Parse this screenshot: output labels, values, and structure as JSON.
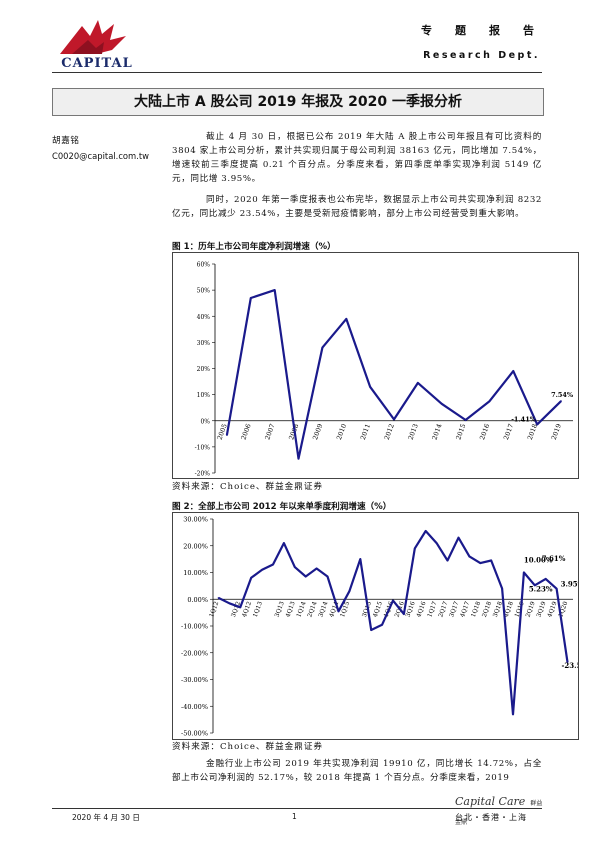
{
  "header": {
    "logo_text": "CAPITAL",
    "dept_cn": "专　题　报　告",
    "dept_en": "Research Dept."
  },
  "title": "大陆上市 A 股公司 2019 年报及 2020 一季报分析",
  "author": {
    "name": "胡嘉铭",
    "email": "C0020@capital.com.tw"
  },
  "paragraphs": [
    "截止 4 月 30 日，根据已公布 2019 年大陆 A 股上市公司年报且有可比资料的 3804 家上市公司分析，累计共实现归属于母公司利润 38163 亿元，同比增加 7.54%，增速较前三季度提高 0.21 个百分点。分季度来看，第四季度单季实现净利润 5149 亿元，同比增 3.95%。",
    "同时，2020 年第一季度报表也公布完毕，数据显示上市公司共实现净利润 8232 亿元，同比减少 23.54%，主要是受新冠疫情影响，部分上市公司经营受到重大影响。"
  ],
  "figure1": {
    "title": "图 1：历年上市公司年度净利润增速（%）",
    "source": "资料来源：Choice、群益金鼎证券"
  },
  "figure2": {
    "title": "图 2：全部上市公司 2012 年以来单季度利润增速（%）",
    "source": "资料来源：Choice、群益金鼎证券"
  },
  "paragraph3": "金融行业上市公司 2019 年共实现净利润 19910 亿，同比增长 14.72%，占全部上市公司净利润的 52.17%，较 2018 年提高 1 个百分点。分季度来看，2019",
  "footer": {
    "date": "2020 年 4 月 30 日",
    "page": "1",
    "brand": "Capital Care",
    "brand_sub": "群益金鼎",
    "cities": "台北・香港・上海"
  },
  "colors": {
    "line": "#1a1a8c",
    "title_bg": "#efefef",
    "logo_red": "#c0182a"
  },
  "chart_data": [
    {
      "type": "line",
      "categories": [
        "2005",
        "2006",
        "2007",
        "2008",
        "2009",
        "2010",
        "2011",
        "2012",
        "2013",
        "2014",
        "2015",
        "2016",
        "2017",
        "2018",
        "2019"
      ],
      "series": [
        {
          "values": [
            -5.5,
            47,
            50,
            -14.5,
            28,
            39,
            13,
            0.5,
            14.5,
            6.5,
            0.3,
            7.5,
            19,
            -1.41,
            7.54
          ]
        }
      ],
      "y_ticks": [
        "60%",
        "50%",
        "40%",
        "30%",
        "20%",
        "10%",
        "0%",
        "-10%",
        "-20%"
      ],
      "ylim": [
        -20,
        60
      ],
      "annotations": [
        {
          "index": 13,
          "text": "-1.41%"
        },
        {
          "index": 14,
          "text": "7.54%"
        }
      ],
      "grid": false
    },
    {
      "type": "line",
      "categories": [
        "1Q12",
        "2Q12",
        "3Q12",
        "4Q12",
        "1Q13",
        "2Q13",
        "3Q13",
        "4Q13",
        "1Q14",
        "2Q14",
        "3Q14",
        "4Q14",
        "1Q15",
        "2Q15",
        "3Q15",
        "4Q15",
        "1Q16",
        "2Q16",
        "3Q16",
        "4Q16",
        "1Q17",
        "2Q17",
        "3Q17",
        "4Q17",
        "1Q18",
        "2Q18",
        "3Q18",
        "4Q18",
        "1Q19",
        "2Q19",
        "3Q19",
        "4Q19",
        "1Q20"
      ],
      "tick_labels_shown": [
        "1Q12",
        "3Q12",
        "4Q12",
        "1Q13",
        "3Q13",
        "4Q13",
        "1Q14",
        "2Q14",
        "3Q14",
        "4Q14",
        "1Q15",
        "3Q15",
        "4Q15",
        "1Q16",
        "2Q16",
        "3Q16",
        "4Q16",
        "1Q17",
        "2Q17",
        "3Q17",
        "4Q17",
        "1Q18",
        "2Q18",
        "3Q18",
        "4Q18",
        "1Q19",
        "2Q19",
        "3Q19",
        "4Q19",
        "1Q20"
      ],
      "series": [
        {
          "values": [
            0.5,
            -1.5,
            -3,
            8,
            11,
            13,
            21,
            12,
            8.5,
            11.5,
            8.5,
            -4.5,
            3,
            15,
            -11.5,
            -9.5,
            -0.5,
            -5.5,
            19,
            25.5,
            21,
            14.5,
            23,
            16,
            13.5,
            14.5,
            4,
            -43,
            10,
            5.23,
            7.61,
            3.95,
            -23.54
          ]
        }
      ],
      "y_ticks": [
        "30.00%",
        "20.00%",
        "10.00%",
        "0.00%",
        "-10.00%",
        "-20.00%",
        "-30.00%",
        "-40.00%",
        "-50.00%"
      ],
      "ylim": [
        -50,
        30
      ],
      "annotations": [
        {
          "index": 28,
          "text": "10.00%"
        },
        {
          "index": 29,
          "text": "5.23%"
        },
        {
          "index": 30,
          "text": "7.61%"
        },
        {
          "index": 31,
          "text": "3.95%"
        },
        {
          "index": 32,
          "text": "-23.54%"
        }
      ],
      "grid": false
    }
  ]
}
